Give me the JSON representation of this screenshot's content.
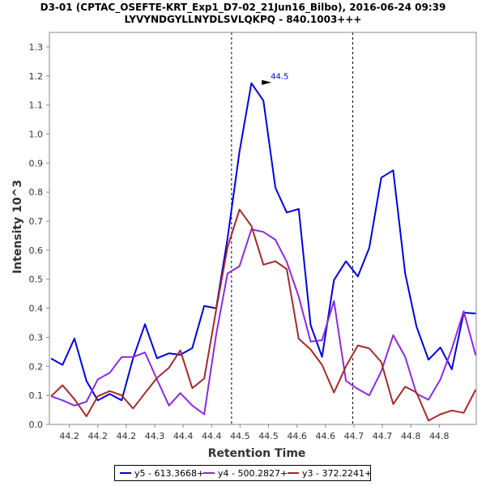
{
  "chart_data": {
    "type": "line",
    "title": "D3-01 (CPTAC_OSEFTE-KRT_Exp1_D7-02_21Jun16_Bilbo), 2016-06-24 09:39",
    "subtitle": "LYVYNDGYLLNYDLSVLQKPQ - 840.1003+++",
    "xlabel": "Retention Time",
    "ylabel": "Intensity 10^3",
    "xlim": [
      44.115,
      44.865
    ],
    "ylim": [
      0,
      1.35
    ],
    "xticks": [
      "44.2",
      "44.2",
      "44.2",
      "44.3",
      "44.4",
      "44.4",
      "44.5",
      "44.5",
      "44.6",
      "44.6",
      "44.7",
      "44.7",
      "44.8",
      "44.8"
    ],
    "yticks": [
      "0.0",
      "0.1",
      "0.2",
      "0.3",
      "0.4",
      "0.5",
      "0.6",
      "0.7",
      "0.8",
      "0.9",
      "1.0",
      "1.1",
      "1.2",
      "1.3"
    ],
    "grid": false,
    "legend_position": "bottom",
    "vlines": [
      44.435,
      44.648
    ],
    "annotation": {
      "text": "44.5",
      "x": 44.508,
      "y": 1.175
    },
    "series": [
      {
        "name": "y5 - 613.3668+",
        "color": "#0000dd",
        "x": [
          44.118,
          44.138,
          44.159,
          44.18,
          44.2,
          44.221,
          44.242,
          44.262,
          44.283,
          44.304,
          44.325,
          44.345,
          44.366,
          44.387,
          44.408,
          44.428,
          44.449,
          44.47,
          44.491,
          44.512,
          44.532,
          44.553,
          44.574,
          44.594,
          44.615,
          44.636,
          44.657,
          44.677,
          44.698,
          44.719,
          44.74,
          44.76,
          44.781,
          44.802,
          44.822,
          44.843,
          44.864
        ],
        "values": [
          0.227,
          0.205,
          0.296,
          0.15,
          0.083,
          0.105,
          0.083,
          0.228,
          0.345,
          0.228,
          0.245,
          0.24,
          0.263,
          0.408,
          0.4,
          0.64,
          0.94,
          1.175,
          1.115,
          0.815,
          0.73,
          0.742,
          0.342,
          0.233,
          0.497,
          0.562,
          0.51,
          0.608,
          0.85,
          0.875,
          0.52,
          0.337,
          0.223,
          0.265,
          0.19,
          0.385,
          0.382
        ]
      },
      {
        "name": "y4 - 500.2827+",
        "color": "#8a2be2",
        "x": [
          44.118,
          44.138,
          44.159,
          44.18,
          44.2,
          44.221,
          44.242,
          44.262,
          44.283,
          44.304,
          44.325,
          44.345,
          44.366,
          44.387,
          44.408,
          44.428,
          44.449,
          44.47,
          44.491,
          44.512,
          44.532,
          44.553,
          44.574,
          44.594,
          44.615,
          44.636,
          44.657,
          44.677,
          44.698,
          44.719,
          44.74,
          44.76,
          44.781,
          44.802,
          44.822,
          44.843,
          44.864
        ],
        "values": [
          0.097,
          0.083,
          0.065,
          0.078,
          0.155,
          0.178,
          0.232,
          0.232,
          0.248,
          0.155,
          0.065,
          0.108,
          0.065,
          0.035,
          0.31,
          0.52,
          0.545,
          0.672,
          0.663,
          0.636,
          0.56,
          0.44,
          0.285,
          0.29,
          0.425,
          0.15,
          0.122,
          0.1,
          0.183,
          0.307,
          0.233,
          0.106,
          0.085,
          0.155,
          0.26,
          0.39,
          0.238
        ]
      },
      {
        "name": "y3 - 372.2241+",
        "color": "#a52a2a",
        "x": [
          44.118,
          44.138,
          44.159,
          44.18,
          44.2,
          44.221,
          44.242,
          44.262,
          44.283,
          44.304,
          44.325,
          44.345,
          44.366,
          44.387,
          44.408,
          44.428,
          44.449,
          44.47,
          44.491,
          44.512,
          44.532,
          44.553,
          44.574,
          44.594,
          44.615,
          44.636,
          44.657,
          44.677,
          44.698,
          44.719,
          44.74,
          44.76,
          44.781,
          44.802,
          44.822,
          44.843,
          44.864
        ],
        "values": [
          0.097,
          0.135,
          0.087,
          0.028,
          0.097,
          0.115,
          0.1,
          0.055,
          0.108,
          0.16,
          0.195,
          0.255,
          0.125,
          0.158,
          0.395,
          0.61,
          0.74,
          0.683,
          0.55,
          0.562,
          0.535,
          0.295,
          0.258,
          0.205,
          0.11,
          0.2,
          0.272,
          0.262,
          0.215,
          0.07,
          0.13,
          0.11,
          0.013,
          0.035,
          0.048,
          0.04,
          0.12
        ]
      }
    ]
  }
}
